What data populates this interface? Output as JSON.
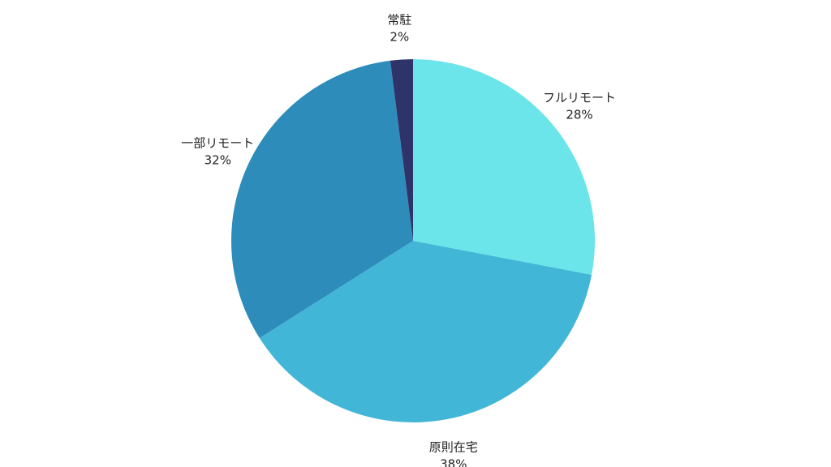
{
  "chart_data": {
    "type": "pie",
    "start_angle_deg": 0,
    "direction": "clockwise",
    "slices": [
      {
        "label": "フルリモート",
        "value": 28,
        "value_label": "28%",
        "color": "#6BE5EA"
      },
      {
        "label": "原則在宅",
        "value": 38,
        "value_label": "38%",
        "color": "#42B6D6"
      },
      {
        "label": "一部リモート",
        "value": 32,
        "value_label": "32%",
        "color": "#2E8CBB"
      },
      {
        "label": "常駐",
        "value": 2,
        "value_label": "2%",
        "color": "#2E3469"
      }
    ]
  }
}
